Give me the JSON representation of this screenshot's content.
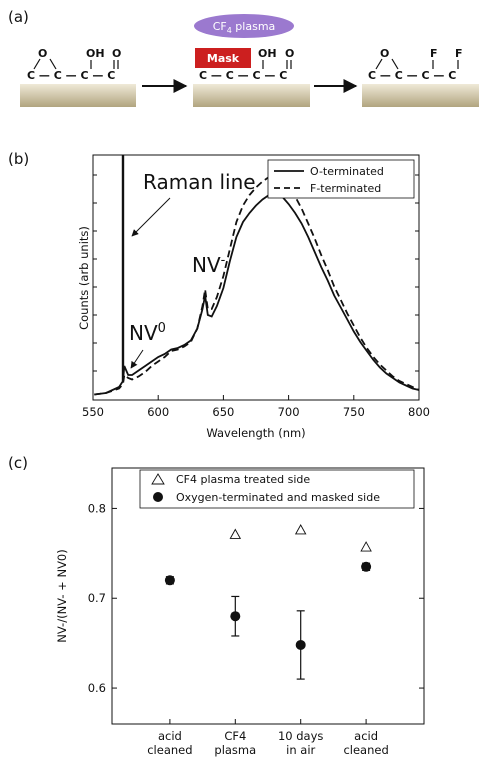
{
  "panels": {
    "a": {
      "label": "(a)",
      "plasma_label_main": "CF",
      "plasma_label_sub": "4",
      "plasma_label_tail": " plasma",
      "mask_label": "Mask",
      "bond": "C — C — C — C",
      "epoxide_O": "O",
      "hydroxyl": "OH",
      "carbonyl_O": "O",
      "fluorine_1": "F",
      "fluorine_2": "F",
      "colors": {
        "plasma": "#9b79cf",
        "mask": "#cc1f1f",
        "substrate_top": "#efe9d8",
        "substrate_bottom": "#b1a47f"
      }
    },
    "b": {
      "label": "(b)",
      "annotation_raman": "Raman line",
      "annotation_nvminus_base": "NV",
      "annotation_nvminus_sup": "-",
      "annotation_nv0_base": "NV",
      "annotation_nv0_sup": "0"
    },
    "c": {
      "label": "(c)"
    }
  },
  "chart_data": [
    {
      "type": "line",
      "panel": "b",
      "xlabel": "Wavelength (nm)",
      "ylabel": "Counts (arb units)",
      "xlim": [
        550,
        800
      ],
      "xticks": [
        550,
        600,
        650,
        700,
        750,
        800
      ],
      "yticks_labeled": false,
      "legend_placement": "top-right",
      "series": [
        {
          "name": "O-terminated",
          "style": "solid",
          "x": [
            551,
            560,
            570,
            573,
            574,
            577,
            580,
            585,
            590,
            595,
            600,
            605,
            610,
            615,
            620,
            625,
            630,
            634,
            636,
            638,
            641,
            645,
            650,
            655,
            660,
            665,
            670,
            675,
            680,
            685,
            690,
            695,
            700,
            705,
            710,
            715,
            720,
            725,
            730,
            735,
            740,
            745,
            750,
            755,
            760,
            765,
            770,
            775,
            780,
            785,
            790,
            795,
            800
          ],
          "y": [
            0.005,
            0.01,
            0.03,
            0.05,
            0.1,
            0.07,
            0.07,
            0.085,
            0.1,
            0.115,
            0.13,
            0.14,
            0.155,
            0.16,
            0.17,
            0.185,
            0.225,
            0.29,
            0.335,
            0.27,
            0.265,
            0.3,
            0.36,
            0.45,
            0.53,
            0.58,
            0.61,
            0.635,
            0.655,
            0.67,
            0.675,
            0.665,
            0.64,
            0.61,
            0.575,
            0.53,
            0.48,
            0.43,
            0.385,
            0.335,
            0.295,
            0.255,
            0.215,
            0.18,
            0.15,
            0.12,
            0.095,
            0.075,
            0.06,
            0.045,
            0.035,
            0.025,
            0.02
          ]
        },
        {
          "name": "F-terminated",
          "style": "dashed",
          "x": [
            551,
            560,
            570,
            573,
            574,
            577,
            580,
            585,
            590,
            595,
            600,
            605,
            610,
            615,
            620,
            625,
            630,
            634,
            636,
            638,
            641,
            645,
            650,
            655,
            660,
            665,
            670,
            675,
            680,
            685,
            690,
            695,
            700,
            705,
            710,
            715,
            720,
            725,
            730,
            735,
            740,
            745,
            750,
            755,
            760,
            765,
            770,
            775,
            780,
            785,
            790,
            795,
            800
          ],
          "y": [
            0.005,
            0.01,
            0.025,
            0.04,
            0.07,
            0.06,
            0.055,
            0.065,
            0.08,
            0.1,
            0.115,
            0.13,
            0.15,
            0.155,
            0.165,
            0.18,
            0.225,
            0.3,
            0.355,
            0.29,
            0.29,
            0.33,
            0.4,
            0.49,
            0.58,
            0.635,
            0.67,
            0.695,
            0.715,
            0.73,
            0.735,
            0.72,
            0.695,
            0.665,
            0.625,
            0.575,
            0.525,
            0.47,
            0.42,
            0.365,
            0.32,
            0.275,
            0.235,
            0.195,
            0.16,
            0.13,
            0.105,
            0.085,
            0.065,
            0.05,
            0.04,
            0.03,
            0.02
          ]
        }
      ],
      "raman_line_x": 573
    },
    {
      "type": "scatter",
      "panel": "c",
      "ylabel": "NV-/(NV- + NV0)",
      "ylim": [
        0.56,
        0.845
      ],
      "yticks": [
        0.6,
        0.7,
        0.8
      ],
      "categories": [
        "acid\ncleaned",
        "CF4\nplasma",
        "10 days\nin air",
        "acid\ncleaned"
      ],
      "legend_placement": "top-center",
      "series": [
        {
          "name": "CF4 plasma treated side",
          "marker": "open-triangle",
          "values": [
            null,
            0.771,
            0.776,
            0.757
          ],
          "errors": [
            null,
            null,
            null,
            null
          ]
        },
        {
          "name": "Oxygen-terminated and masked side",
          "marker": "filled-circle",
          "values": [
            0.72,
            0.68,
            0.648,
            0.735
          ],
          "errors": [
            0.004,
            0.022,
            0.038,
            0.004
          ]
        }
      ]
    }
  ]
}
